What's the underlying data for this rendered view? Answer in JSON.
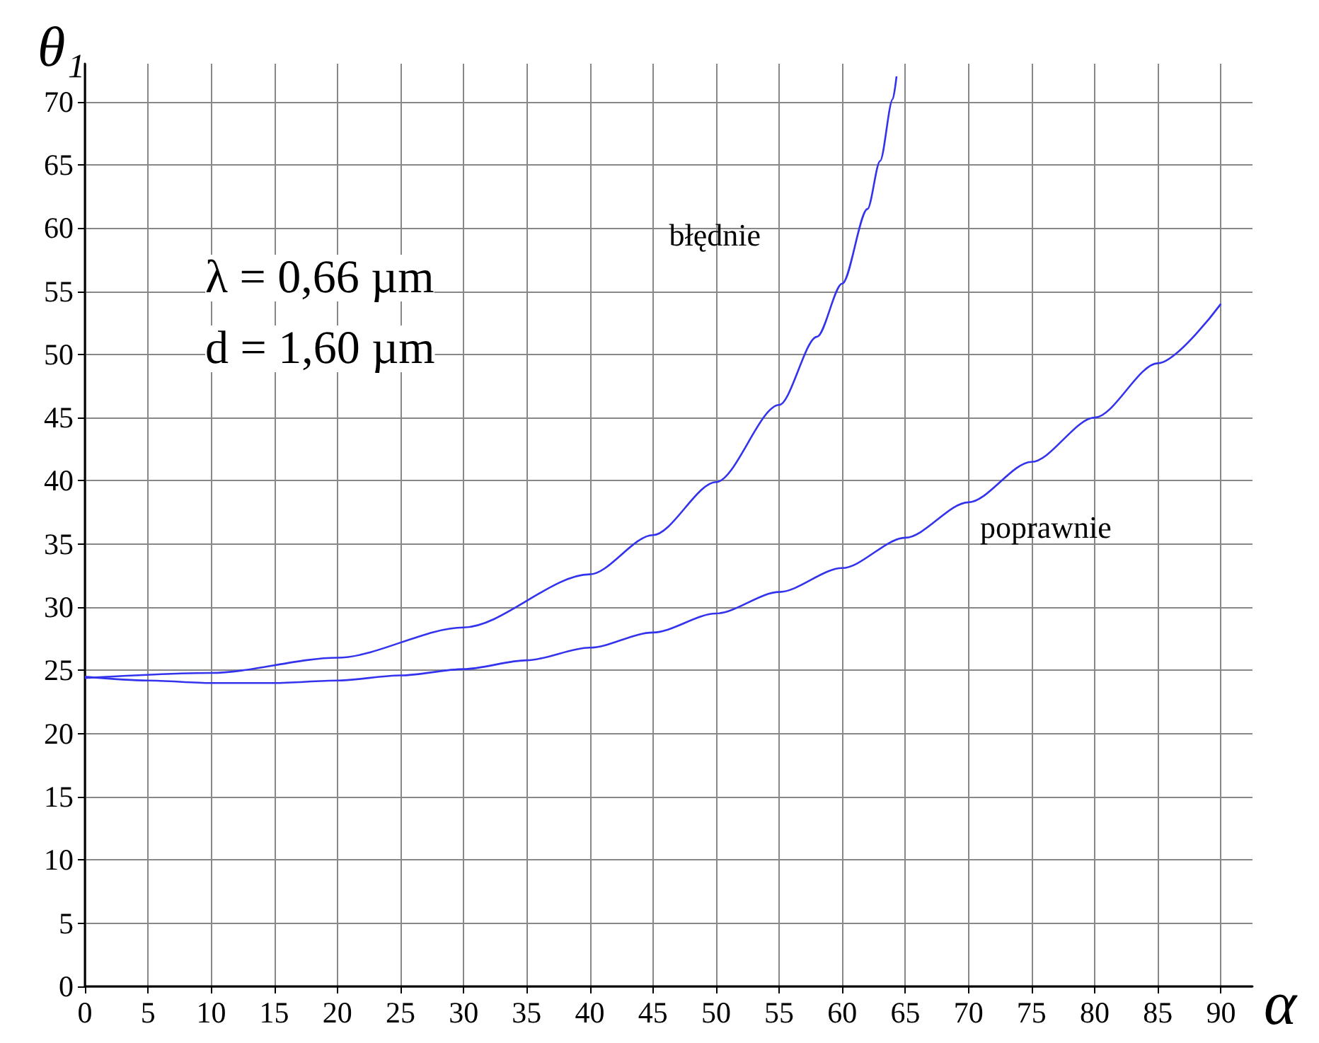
{
  "chart_data": {
    "type": "line",
    "xlabel": "α",
    "ylabel": "θ₁",
    "annotations": [
      "λ = 0,66 µm",
      "d = 1,60 µm"
    ],
    "series": [
      {
        "name": "błędnie",
        "color": "#3333ee",
        "x": [
          0,
          10,
          20,
          30,
          40,
          45,
          50,
          55,
          58,
          60,
          62,
          63,
          64,
          64.3
        ],
        "values": [
          24.4,
          24.8,
          26.0,
          28.4,
          32.6,
          35.7,
          39.9,
          46.0,
          51.4,
          55.6,
          61.5,
          65.3,
          70.2,
          72.0
        ]
      },
      {
        "name": "poprawnie",
        "color": "#3333ee",
        "x": [
          0,
          5,
          10,
          15,
          20,
          25,
          30,
          35,
          40,
          45,
          50,
          55,
          60,
          65,
          70,
          75,
          80,
          85,
          90
        ],
        "values": [
          24.5,
          24.2,
          24.0,
          24.0,
          24.2,
          24.6,
          25.1,
          25.8,
          26.8,
          28.0,
          29.5,
          31.2,
          33.1,
          35.5,
          38.3,
          41.5,
          45.0,
          49.3,
          54.0
        ]
      }
    ],
    "xlim": [
      0,
      92.5
    ],
    "ylim": [
      0,
      73
    ],
    "xticks": [
      0,
      5,
      10,
      15,
      20,
      25,
      30,
      35,
      40,
      45,
      50,
      55,
      60,
      65,
      70,
      75,
      80,
      85,
      90
    ],
    "yticks": [
      0,
      5,
      10,
      15,
      20,
      25,
      30,
      35,
      40,
      45,
      50,
      55,
      60,
      65,
      70
    ],
    "grid": true,
    "legend": false,
    "marker": "none",
    "line_style": "solid"
  }
}
